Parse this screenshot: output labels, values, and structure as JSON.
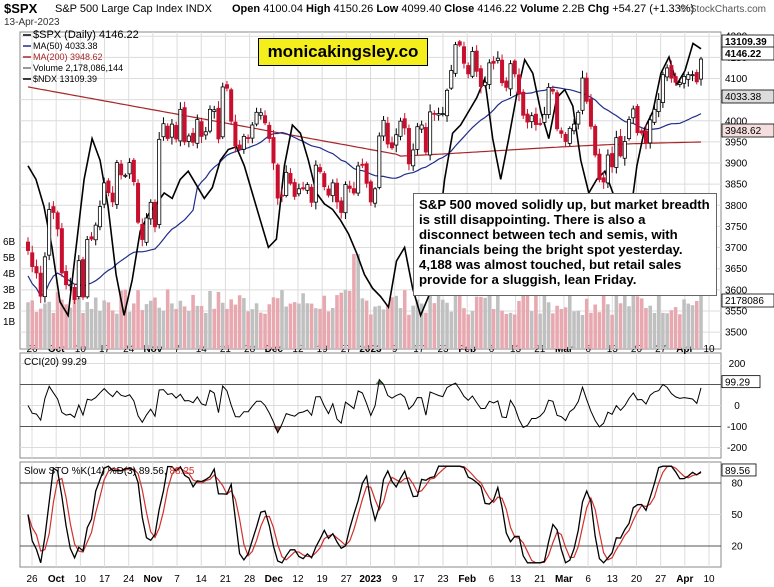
{
  "header": {
    "ticker": "$SPX",
    "index_name": "S&P 500 Large Cap Index INDX",
    "date": "13-Apr-2023",
    "open_label": "Open",
    "open": "4100.04",
    "high_label": "High",
    "high": "4150.26",
    "low_label": "Low",
    "low": "4099.40",
    "close_label": "Close",
    "close": "4146.22",
    "volume_label": "Volume",
    "volume": "2.2B",
    "chg_label": "Chg",
    "chg": "+54.27 (+1.33%)",
    "copyright": "© StockCharts.com"
  },
  "legend": {
    "spx": "$SPX (Daily) 4146.22",
    "ma50": "MA(50) 4033.38",
    "ma200": "MA(200) 3948.62",
    "volume": "Volume 2,178,086,144",
    "ndx": "$NDX 13109.39"
  },
  "brand": "monicakingsley.co",
  "commentary": "S&P 500 moved solidly up, but market breadth is still disappointing. There is also a disconnect between tech and semis, with financials being the bright spot yesterday. 4,188 was almost touched, but retail sales provide for a sluggish, lean Friday.",
  "colors": {
    "up": "#ffffff",
    "down": "#c8102e",
    "ma50": "#1f2d8a",
    "ma200": "#a8282a",
    "ndx": "#000000",
    "volume_up": "#c0c0c0",
    "volume_down": "#e8a8b0",
    "cci_pos": "#5a7f5a",
    "cci_neg": "#8a4e44",
    "sto_k": "#000000",
    "sto_d": "#d0312d",
    "grid": "#dcdcdc",
    "ma50_tag": "#dcdcdc",
    "ma200_tag": "#f4dede"
  },
  "chart_data": [
    {
      "type": "candlestick",
      "title": "$SPX (Daily) 4146.22",
      "ylim": [
        3460,
        4210
      ],
      "y_ticks": [
        3500,
        3550,
        3600,
        3650,
        3700,
        3750,
        3800,
        3850,
        3900,
        3950,
        4000,
        4050,
        4100,
        4150,
        4200
      ],
      "x_ticks": [
        "26",
        "Oct",
        "10",
        "17",
        "24",
        "Nov",
        "7",
        "14",
        "21",
        "28",
        "Dec",
        "12",
        "19",
        "27",
        "2023",
        "9",
        "17",
        "23",
        "Feb",
        "6",
        "13",
        "21",
        "Mar",
        "6",
        "13",
        "20",
        "27",
        "Apr",
        "10"
      ],
      "volume_ticks": [
        "6B",
        "5B",
        "4B",
        "3B",
        "2B",
        "1B"
      ],
      "last_value_tags": [
        "13109.39",
        "4146.22",
        "4033.38",
        "3948.62",
        "2178086"
      ],
      "close": [
        3693,
        3655,
        3640,
        3585,
        3678,
        3790,
        3783,
        3744,
        3640,
        3612,
        3612,
        3577,
        3669,
        3583,
        3719,
        3720,
        3753,
        3797,
        3853,
        3830,
        3808,
        3901,
        3872,
        3871,
        3901,
        3856,
        3760,
        3719,
        3770,
        3807,
        3749,
        3956,
        3993,
        3958,
        3992,
        3957,
        4027,
        3950,
        3964,
        3949,
        4003,
        3963,
        3974,
        4027,
        4026,
        3957,
        4080,
        4077,
        3999,
        3941,
        3933,
        3963,
        3958,
        3990,
        4020,
        4019,
        3995,
        3958,
        3900,
        3817,
        3822,
        3878,
        3852,
        3821,
        3839,
        3839,
        3849,
        3807,
        3895,
        3880,
        3844,
        3824,
        3853,
        3808,
        3783,
        3849,
        3840,
        3829,
        3893,
        3895,
        3852,
        3808,
        3839,
        3964,
        4001,
        3945,
        3936,
        3967,
        3999,
        3983,
        3898,
        3931,
        3986,
        3990,
        3926,
        4021,
        4017,
        4017,
        4017,
        4072,
        4119,
        4180,
        4179,
        4136,
        4111,
        4164,
        4117,
        4081,
        4091,
        4137,
        4136,
        4148,
        4090,
        4079,
        4135,
        4111,
        4064,
        4013,
        3997,
        4012,
        3991,
        3992,
        4015,
        4079,
        4070,
        3981,
        3970,
        3951,
        3982,
        3992,
        4020,
        4101,
        4046,
        3987,
        3919,
        3861,
        3855,
        3919,
        3891,
        3960,
        3917,
        3951,
        4003,
        4028,
        3972,
        3971,
        3948,
        4002,
        4027,
        4050,
        4109,
        4125,
        4101,
        4091,
        4090,
        4105,
        4109,
        4109,
        4092,
        4146
      ]
    },
    {
      "type": "line",
      "title": "CCI(20) 99.29",
      "ylim": [
        -250,
        250
      ],
      "y_ticks": [
        200,
        100,
        0,
        -100,
        -200
      ],
      "last": 99.29
    },
    {
      "type": "line",
      "title": "Slow STO %K(14) %D(3) 89.56, 88.25",
      "ylim": [
        0,
        100
      ],
      "y_ticks": [
        80,
        50,
        20
      ],
      "k_last": 89.56,
      "d_last": 88.25,
      "tags": [
        "89.56"
      ]
    }
  ]
}
